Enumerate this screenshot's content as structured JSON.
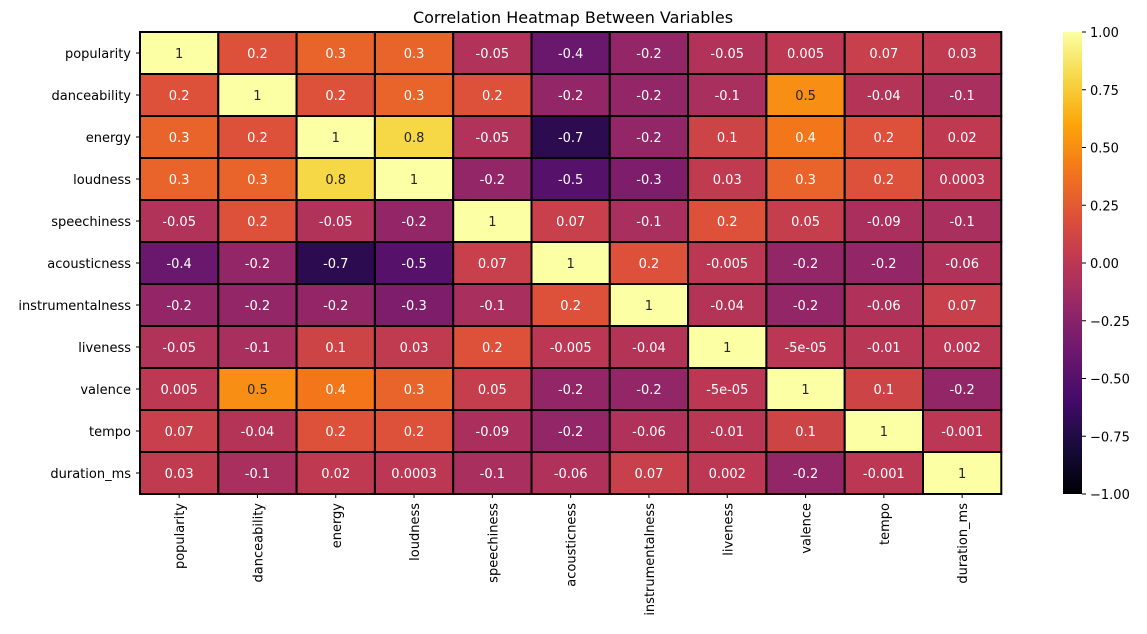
{
  "chart_data": {
    "type": "heatmap",
    "title": "Correlation Heatmap Between Variables",
    "rows": [
      "popularity",
      "danceability",
      "energy",
      "loudness",
      "speechiness",
      "acousticness",
      "instrumentalness",
      "liveness",
      "valence",
      "tempo",
      "duration_ms"
    ],
    "columns": [
      "popularity",
      "danceability",
      "energy",
      "loudness",
      "speechiness",
      "acousticness",
      "instrumentalness",
      "liveness",
      "valence",
      "tempo",
      "duration_ms"
    ],
    "values": [
      [
        1,
        0.2,
        0.3,
        0.3,
        -0.05,
        -0.4,
        -0.2,
        -0.05,
        0.005,
        0.07,
        0.03
      ],
      [
        0.2,
        1,
        0.2,
        0.3,
        0.2,
        -0.2,
        -0.2,
        -0.1,
        0.5,
        -0.04,
        -0.1
      ],
      [
        0.3,
        0.2,
        1,
        0.8,
        -0.05,
        -0.7,
        -0.2,
        0.1,
        0.4,
        0.2,
        0.02
      ],
      [
        0.3,
        0.3,
        0.8,
        1,
        -0.2,
        -0.5,
        -0.3,
        0.03,
        0.3,
        0.2,
        0.0003
      ],
      [
        -0.05,
        0.2,
        -0.05,
        -0.2,
        1,
        0.07,
        -0.1,
        0.2,
        0.05,
        -0.09,
        -0.1
      ],
      [
        -0.4,
        -0.2,
        -0.7,
        -0.5,
        0.07,
        1,
        0.2,
        -0.005,
        -0.2,
        -0.2,
        -0.06
      ],
      [
        -0.2,
        -0.2,
        -0.2,
        -0.3,
        -0.1,
        0.2,
        1,
        -0.04,
        -0.2,
        -0.06,
        0.07
      ],
      [
        -0.05,
        -0.1,
        0.1,
        0.03,
        0.2,
        -0.005,
        -0.04,
        1,
        -5e-05,
        -0.01,
        0.002
      ],
      [
        0.005,
        0.5,
        0.4,
        0.3,
        0.05,
        -0.2,
        -0.2,
        -5e-05,
        1,
        0.1,
        -0.2
      ],
      [
        0.07,
        -0.04,
        0.2,
        0.2,
        -0.09,
        -0.2,
        -0.06,
        -0.01,
        0.1,
        1,
        -0.001
      ],
      [
        0.03,
        -0.1,
        0.02,
        0.0003,
        -0.1,
        -0.06,
        0.07,
        0.002,
        -0.2,
        -0.001,
        1
      ]
    ],
    "labels": [
      [
        "1",
        "0.2",
        "0.3",
        "0.3",
        "-0.05",
        "-0.4",
        "-0.2",
        "-0.05",
        "0.005",
        "0.07",
        "0.03"
      ],
      [
        "0.2",
        "1",
        "0.2",
        "0.3",
        "0.2",
        "-0.2",
        "-0.2",
        "-0.1",
        "0.5",
        "-0.04",
        "-0.1"
      ],
      [
        "0.3",
        "0.2",
        "1",
        "0.8",
        "-0.05",
        "-0.7",
        "-0.2",
        "0.1",
        "0.4",
        "0.2",
        "0.02"
      ],
      [
        "0.3",
        "0.3",
        "0.8",
        "1",
        "-0.2",
        "-0.5",
        "-0.3",
        "0.03",
        "0.3",
        "0.2",
        "0.0003"
      ],
      [
        "-0.05",
        "0.2",
        "-0.05",
        "-0.2",
        "1",
        "0.07",
        "-0.1",
        "0.2",
        "0.05",
        "-0.09",
        "-0.1"
      ],
      [
        "-0.4",
        "-0.2",
        "-0.7",
        "-0.5",
        "0.07",
        "1",
        "0.2",
        "-0.005",
        "-0.2",
        "-0.2",
        "-0.06"
      ],
      [
        "-0.2",
        "-0.2",
        "-0.2",
        "-0.3",
        "-0.1",
        "0.2",
        "1",
        "-0.04",
        "-0.2",
        "-0.06",
        "0.07"
      ],
      [
        "-0.05",
        "-0.1",
        "0.1",
        "0.03",
        "0.2",
        "-0.005",
        "-0.04",
        "1",
        "-5e-05",
        "-0.01",
        "0.002"
      ],
      [
        "0.005",
        "0.5",
        "0.4",
        "0.3",
        "0.05",
        "-0.2",
        "-0.2",
        "-5e-05",
        "1",
        "0.1",
        "-0.2"
      ],
      [
        "0.07",
        "-0.04",
        "0.2",
        "0.2",
        "-0.09",
        "-0.2",
        "-0.06",
        "-0.01",
        "0.1",
        "1",
        "-0.001"
      ],
      [
        "0.03",
        "-0.1",
        "0.02",
        "0.0003",
        "-0.1",
        "-0.06",
        "0.07",
        "0.002",
        "-0.2",
        "-0.001",
        "1"
      ]
    ],
    "colormap": "inferno",
    "vmin": -1,
    "vmax": 1,
    "colorbar_ticks": [
      1.0,
      0.75,
      0.5,
      0.25,
      0.0,
      -0.25,
      -0.5,
      -0.75,
      -1.0
    ],
    "colorbar_tick_labels": [
      "1.00",
      "0.75",
      "0.50",
      "0.25",
      "0.00",
      "−0.25",
      "−0.50",
      "−0.75",
      "−1.00"
    ],
    "cell_border_color": "#000000"
  }
}
